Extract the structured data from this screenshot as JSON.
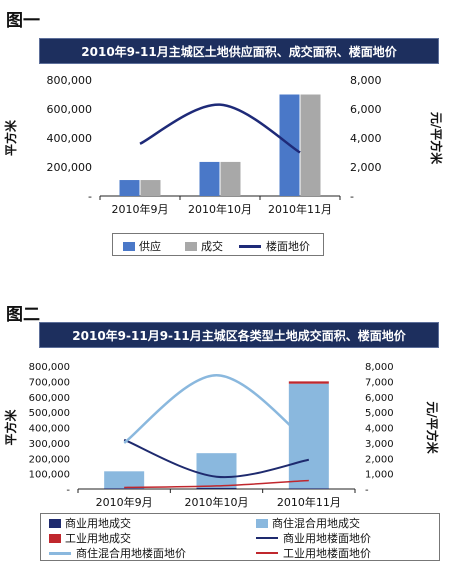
{
  "figures": [
    {
      "label": "图一",
      "title": "2010年9-11月主城区土地供应面积、成交面积、楼面地价"
    },
    {
      "label": "图二",
      "title": "2010年9-11月9-11月主城区各类型土地成交面积、楼面地价"
    }
  ],
  "chart_data": [
    {
      "type": "bar",
      "title": "2010年9-11月主城区土地供应面积、成交面积、楼面地价",
      "categories": [
        "2010年9月",
        "2010年10月",
        "2010年11月"
      ],
      "ylabel": "平方米",
      "y2label": "元/平方米",
      "ylim": [
        0,
        800000
      ],
      "y2lim": [
        0,
        8000
      ],
      "yticks": [
        "-",
        "200,000",
        "400,000",
        "600,000",
        "800,000"
      ],
      "y2ticks": [
        "-",
        "2,000",
        "4,000",
        "6,000",
        "8,000"
      ],
      "series": [
        {
          "name": "供应",
          "kind": "bar",
          "axis": "left",
          "color": "#4a78c8",
          "values": [
            110000,
            235000,
            700000
          ]
        },
        {
          "name": "成交",
          "kind": "bar",
          "axis": "left",
          "color": "#a8a8a8",
          "values": [
            110000,
            235000,
            700000
          ]
        },
        {
          "name": "楼面地价",
          "kind": "line",
          "axis": "right",
          "color": "#1e2a78",
          "width": 2.5,
          "values": [
            3600,
            6300,
            3000
          ]
        }
      ],
      "legend": "bottom"
    },
    {
      "type": "bar",
      "title": "2010年9-11月9-11月主城区各类型土地成交面积、楼面地价",
      "categories": [
        "2010年9月",
        "2010年10月",
        "2010年11月"
      ],
      "ylabel": "平方米",
      "y2label": "元/平方米",
      "ylim": [
        0,
        800000
      ],
      "y2lim": [
        0,
        8000
      ],
      "yticks": [
        "-",
        "100,000",
        "200,000",
        "300,000",
        "400,000",
        "500,000",
        "600,000",
        "700,000",
        "800,000"
      ],
      "y2ticks": [
        "-",
        "1,000",
        "2,000",
        "3,000",
        "4,000",
        "5,000",
        "6,000",
        "7,000",
        "8,000"
      ],
      "stacked": true,
      "series": [
        {
          "name": "商业用地成交",
          "kind": "bar",
          "axis": "left",
          "color": "#1e2a6e",
          "values": [
            5000,
            8000,
            5000
          ]
        },
        {
          "name": "商住混合用地成交",
          "kind": "bar",
          "axis": "left",
          "color": "#8ab8de",
          "values": [
            110000,
            225000,
            680000
          ]
        },
        {
          "name": "工业用地成交",
          "kind": "bar",
          "axis": "left",
          "color": "#c0272d",
          "values": [
            0,
            0,
            15000
          ]
        },
        {
          "name": "商业用地楼面地价",
          "kind": "line",
          "axis": "right",
          "color": "#1e2a6e",
          "width": 2,
          "values": [
            3200,
            800,
            1900
          ]
        },
        {
          "name": "商住混合用地楼面地价",
          "kind": "line",
          "axis": "right",
          "color": "#8ab8de",
          "width": 2.5,
          "values": [
            3000,
            7400,
            3000
          ]
        },
        {
          "name": "工业用地楼面地价",
          "kind": "line",
          "axis": "right",
          "color": "#c0272d",
          "width": 1.5,
          "values": [
            100,
            200,
            550
          ]
        }
      ],
      "legend": "bottom"
    }
  ]
}
